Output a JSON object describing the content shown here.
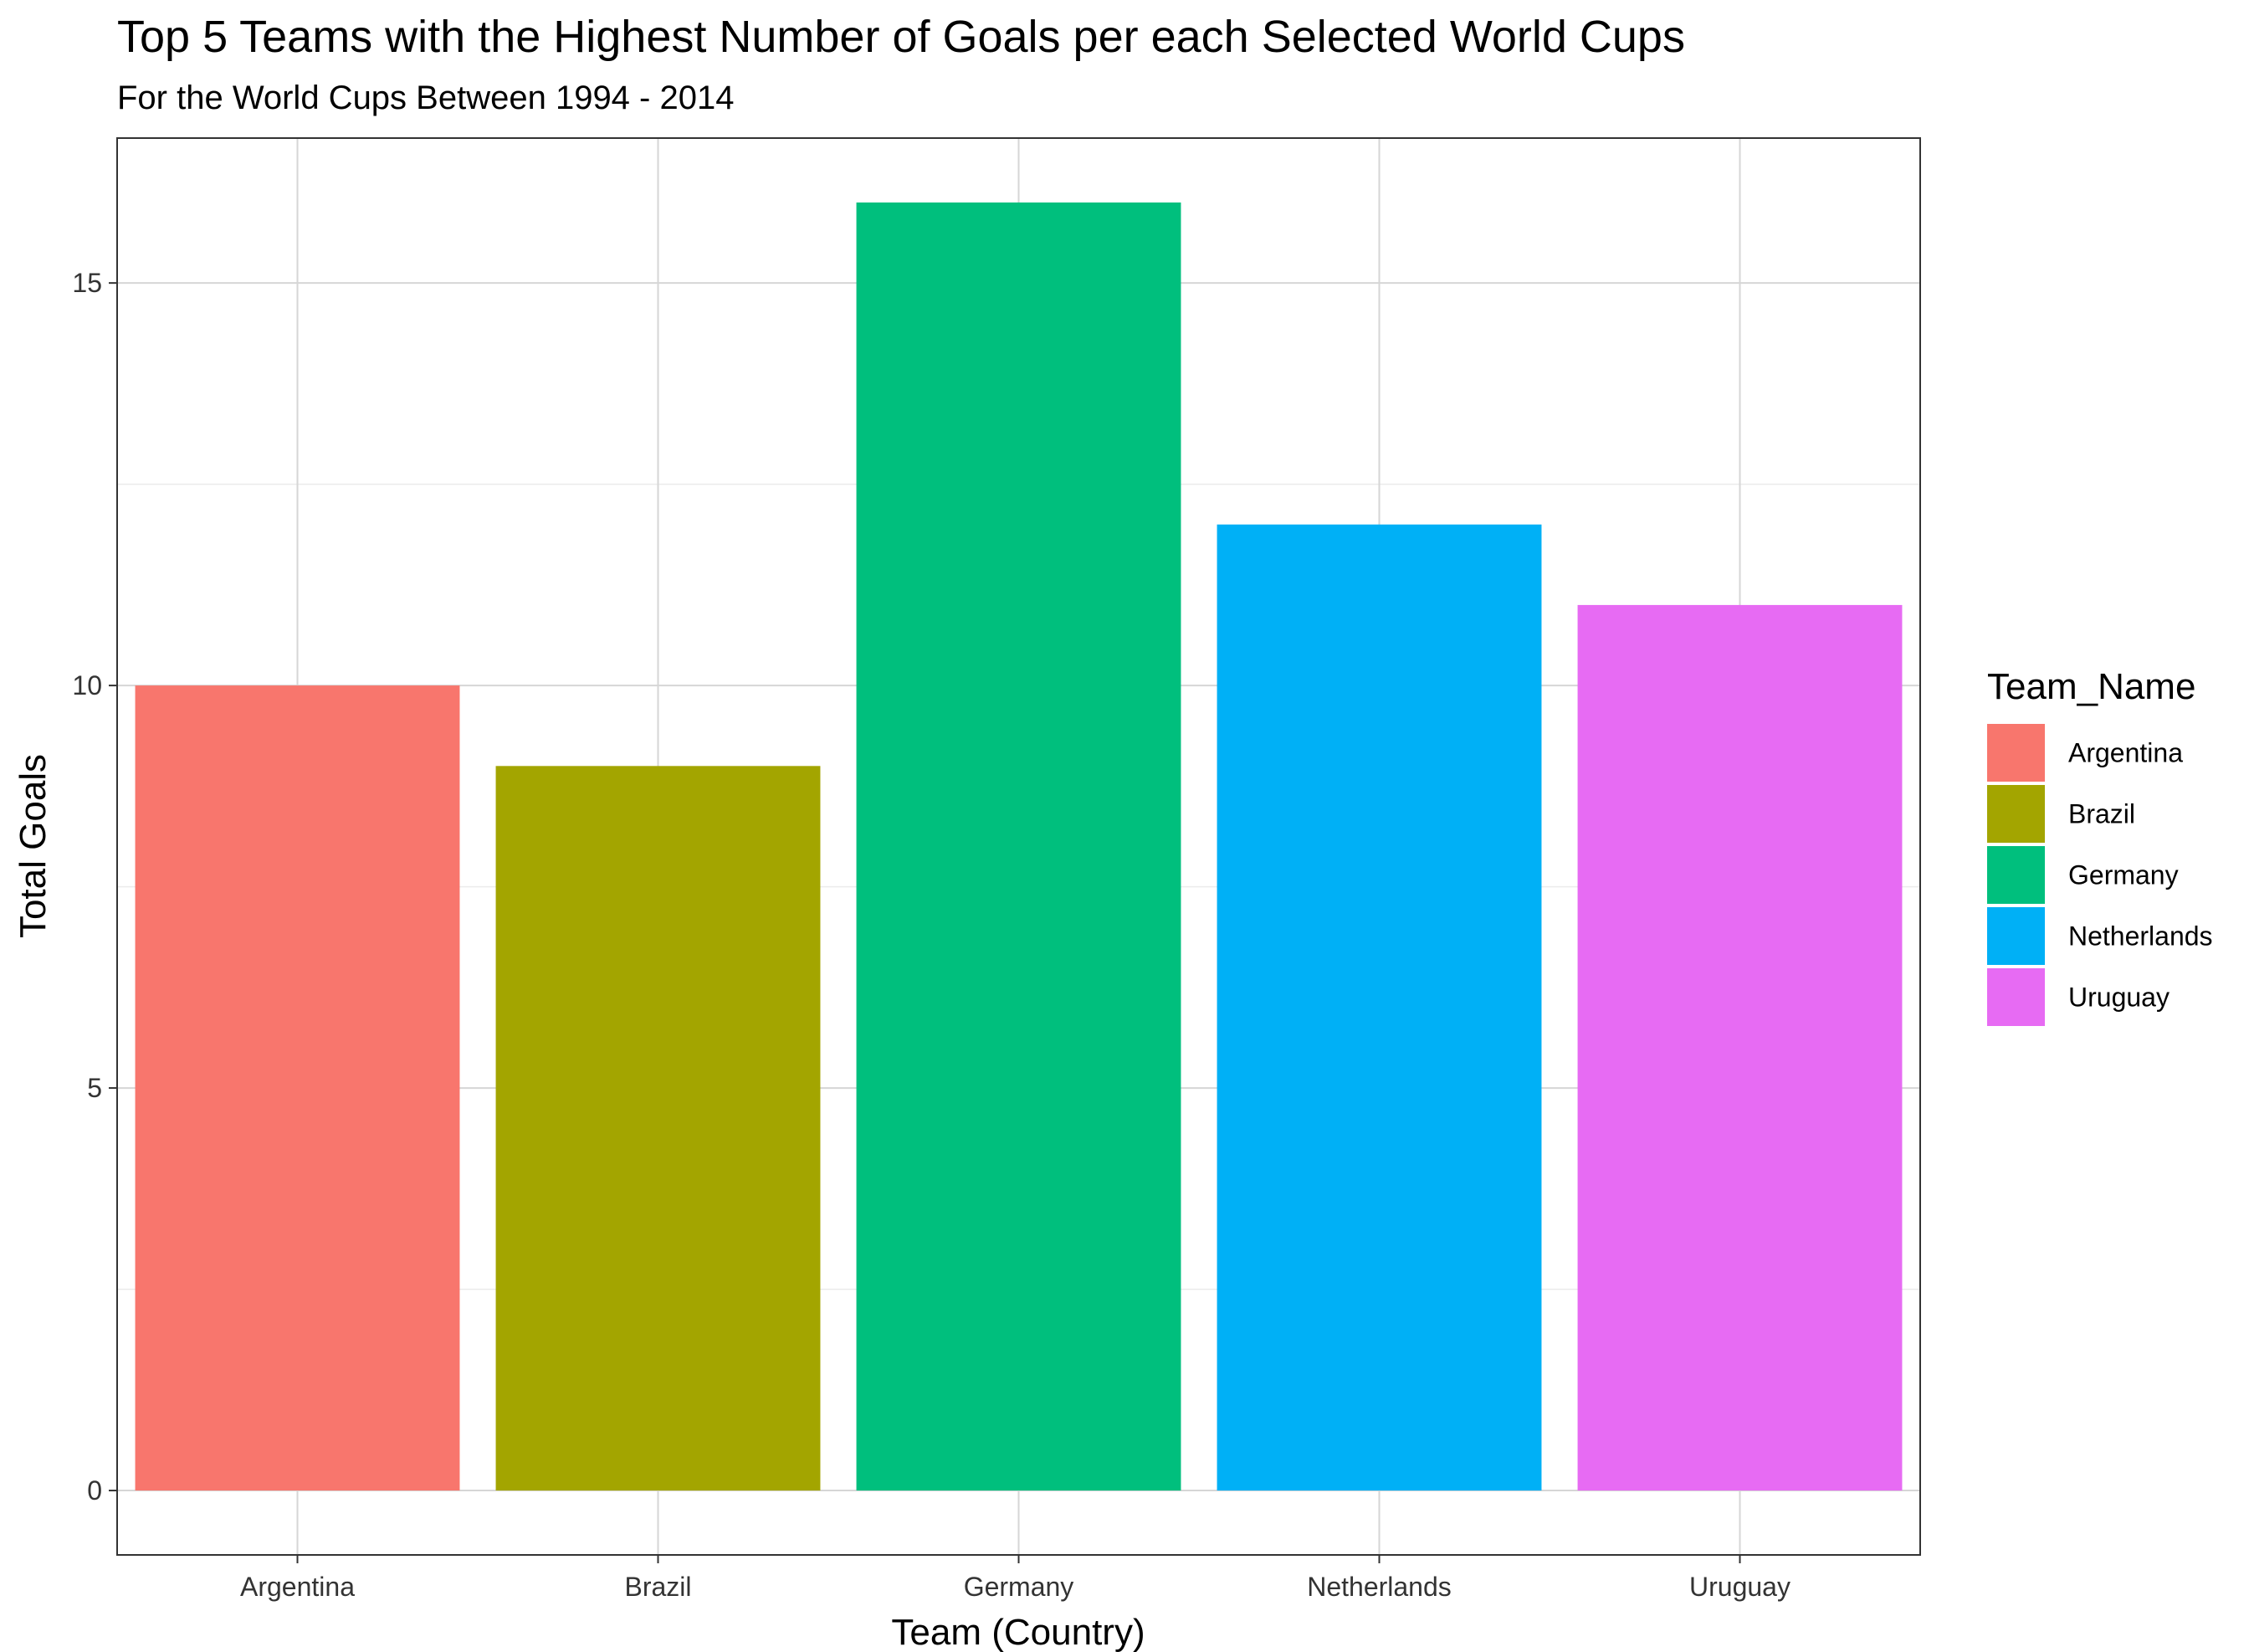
{
  "chart_data": {
    "type": "bar",
    "title": "Top 5 Teams with the Highest Number of Goals per each Selected World Cups",
    "subtitle": "For the World Cups Between 1994 - 2014",
    "xlabel": "Team (Country)",
    "ylabel": "Total Goals",
    "categories": [
      "Argentina",
      "Brazil",
      "Germany",
      "Netherlands",
      "Uruguay"
    ],
    "values": [
      10,
      9,
      16,
      12,
      11
    ],
    "colors": [
      "#F8766D",
      "#A3A500",
      "#00BF7D",
      "#00B0F6",
      "#E76BF3"
    ],
    "ylim": [
      -0.8,
      16.8
    ],
    "yticks": [
      0,
      5,
      10,
      15
    ],
    "grid": true,
    "legend": {
      "title": "Team_Name",
      "placement": "right",
      "entries": [
        "Argentina",
        "Brazil",
        "Germany",
        "Netherlands",
        "Uruguay"
      ]
    }
  }
}
